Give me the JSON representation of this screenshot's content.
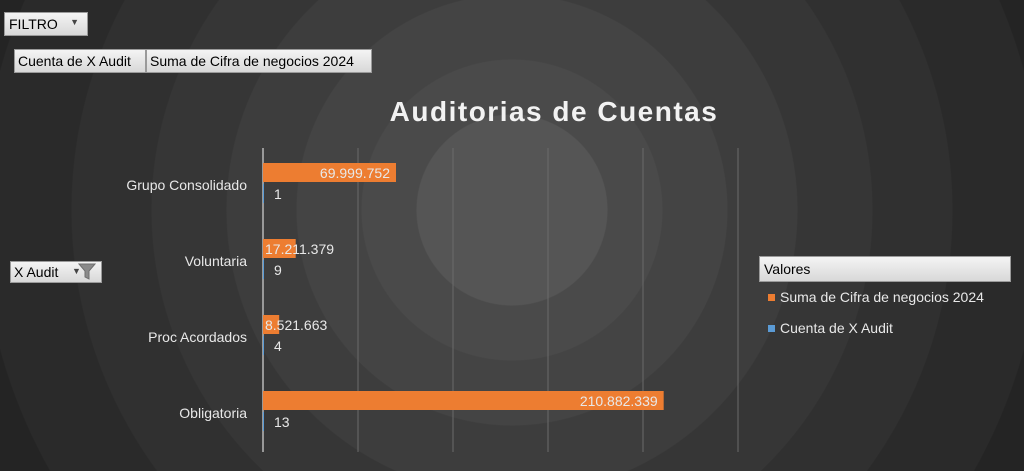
{
  "pivot": {
    "filter_label": "FILTRO",
    "value_fields": [
      "Cuenta de X Audit",
      "Suma de Cifra de negocios 2024"
    ],
    "row_field_label": "X Audit"
  },
  "colors": {
    "sum_series": "#ed7d31",
    "count_series": "#5b9bd5",
    "text": "#e8e8e8",
    "gridline": "#6a6a6a"
  },
  "chart_data": {
    "type": "bar",
    "orientation": "horizontal",
    "title": "Auditorias de Cuentas",
    "categories": [
      "Grupo Consolidado",
      "Voluntaria",
      "Proc Acordados",
      "Obligatoria"
    ],
    "series": [
      {
        "name": "Suma de Cifra de negocios 2024",
        "values": [
          69999752,
          17211379,
          8521663,
          210882339
        ],
        "labels": [
          "69.999.752",
          "17.211.379",
          "8.521.663",
          "210.882.339"
        ]
      },
      {
        "name": "Cuenta de X Audit",
        "values": [
          1,
          9,
          4,
          13
        ],
        "labels": [
          "1",
          "9",
          "4",
          "13"
        ]
      }
    ],
    "xlim": [
      0,
      250000000
    ],
    "gridlines": true,
    "legend": {
      "title": "Valores",
      "position": "right"
    }
  }
}
